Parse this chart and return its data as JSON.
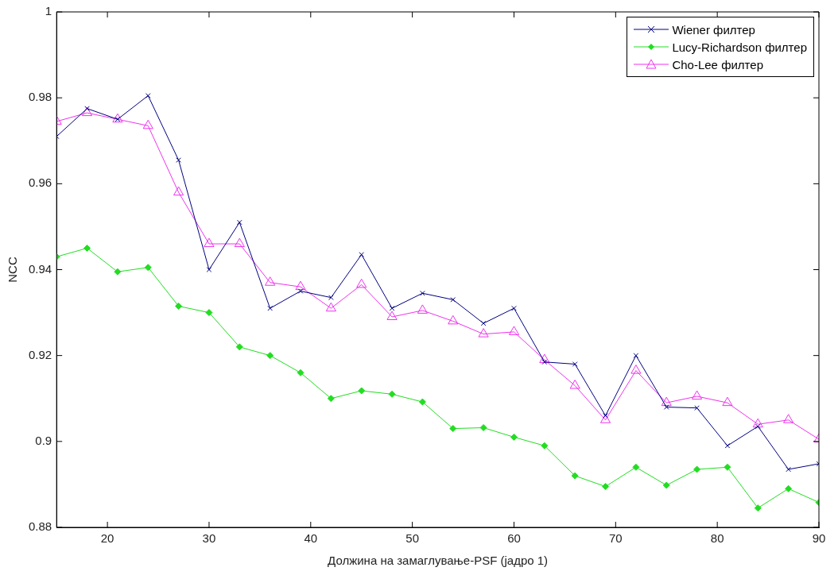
{
  "chart_data": {
    "type": "line",
    "xlabel": "Должина на замаглување-PSF (јадро 1)",
    "ylabel": "NCC",
    "x": [
      15,
      18,
      21,
      24,
      27,
      30,
      33,
      36,
      39,
      42,
      45,
      48,
      51,
      54,
      57,
      60,
      63,
      66,
      69,
      72,
      75,
      78,
      81,
      84,
      87,
      90
    ],
    "series": [
      {
        "name": "Wiener филтер",
        "color": "#000080",
        "marker": "cross",
        "values": [
          0.971,
          0.9775,
          0.975,
          0.9805,
          0.9655,
          0.94,
          0.951,
          0.931,
          0.935,
          0.9335,
          0.9435,
          0.931,
          0.9345,
          0.933,
          0.9275,
          0.931,
          0.9185,
          0.918,
          0.906,
          0.92,
          0.908,
          0.9078,
          0.899,
          0.9035,
          0.8935,
          0.8948
        ]
      },
      {
        "name": "Lucy-Richardson филтер",
        "color": "#22dd22",
        "marker": "diamond",
        "values": [
          0.943,
          0.945,
          0.9395,
          0.9405,
          0.9315,
          0.93,
          0.922,
          0.92,
          0.916,
          0.91,
          0.9118,
          0.911,
          0.9092,
          0.903,
          0.9032,
          0.901,
          0.899,
          0.892,
          0.8895,
          0.894,
          0.8898,
          0.8935,
          0.894,
          0.8845,
          0.889,
          0.8858
        ]
      },
      {
        "name": "Cho-Lee филтер",
        "color": "#ee33ee",
        "marker": "triangle",
        "values": [
          0.9745,
          0.9765,
          0.975,
          0.9735,
          0.958,
          0.946,
          0.946,
          0.937,
          0.936,
          0.931,
          0.9365,
          0.929,
          0.9305,
          0.928,
          0.925,
          0.9255,
          0.919,
          0.913,
          0.905,
          0.9165,
          0.909,
          0.9105,
          0.909,
          0.904,
          0.905,
          0.9005
        ]
      }
    ],
    "xlim": [
      15,
      90
    ],
    "xticks": [
      20,
      30,
      40,
      50,
      60,
      70,
      80,
      90
    ],
    "ylim": [
      0.88,
      1
    ],
    "yticks": [
      0.88,
      0.9,
      0.92,
      0.94,
      0.96,
      0.98,
      1
    ],
    "grid": false,
    "legend": "top right",
    "line_style": "solid"
  }
}
